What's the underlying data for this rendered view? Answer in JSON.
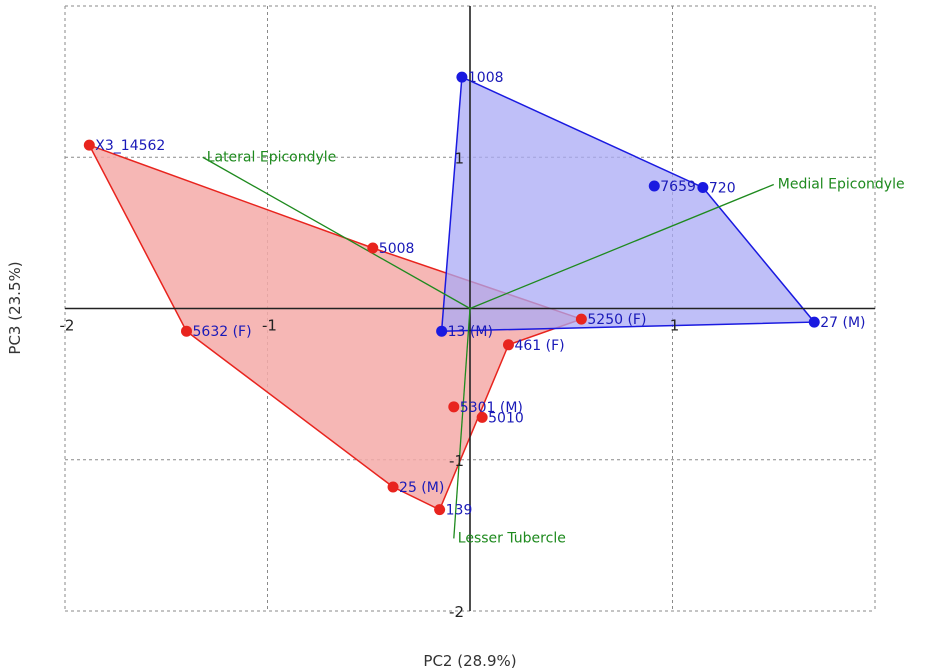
{
  "chart_data": {
    "type": "scatter",
    "title": "",
    "xlabel": "PC2 (28.9%)",
    "ylabel": "PC3 (23.5%)",
    "xlim": [
      -2,
      2
    ],
    "ylim": [
      -2,
      2
    ],
    "xticks": [
      -2,
      -1,
      0,
      1,
      2
    ],
    "yticks": [
      -2,
      -1,
      0,
      1,
      2
    ],
    "x_tick_labels": [
      "-2",
      "-1",
      "1"
    ],
    "y_tick_labels": [
      "1",
      "-1",
      "-2"
    ],
    "grid": true,
    "colors": {
      "red": "#e8241e",
      "blue": "#1a1ae0",
      "red_fill": "#f4aaa8",
      "blue_fill": "#a9a9f5",
      "green": "#1e8a1e"
    },
    "red_hull": [
      {
        "label": "X3_14562",
        "x": -1.88,
        "y": 1.08
      },
      {
        "label": "5632 (F)",
        "x": -1.4,
        "y": -0.15
      },
      {
        "label": "25 (M)",
        "x": -0.38,
        "y": -1.18
      },
      {
        "label": "139",
        "x": -0.15,
        "y": -1.33
      },
      {
        "label": "461 (F)",
        "x": 0.19,
        "y": -0.24
      },
      {
        "label": "5250 (F)",
        "x": 0.55,
        "y": -0.07
      },
      {
        "label": "5008",
        "x": -0.48,
        "y": 0.4
      }
    ],
    "red_interior": [
      {
        "label": "5301 (M)",
        "x": -0.08,
        "y": -0.65
      },
      {
        "label": "5010",
        "x": 0.06,
        "y": -0.72
      }
    ],
    "blue_hull": [
      {
        "label": "1008",
        "x": -0.04,
        "y": 1.53
      },
      {
        "label": "720",
        "x": 1.15,
        "y": 0.8
      },
      {
        "label": "27 (M)",
        "x": 1.7,
        "y": -0.09
      },
      {
        "label": "13 (M)",
        "x": -0.14,
        "y": -0.15
      }
    ],
    "blue_interior": [
      {
        "label": "7659",
        "x": 0.91,
        "y": 0.81
      }
    ],
    "loadings": [
      {
        "label": "Lateral Epicondyle",
        "x": -1.32,
        "y": 1.0
      },
      {
        "label": "Medial Epicondyle",
        "x": 1.5,
        "y": 0.82
      },
      {
        "label": "Lesser Tubercle",
        "x": -0.08,
        "y": -1.52
      }
    ]
  }
}
